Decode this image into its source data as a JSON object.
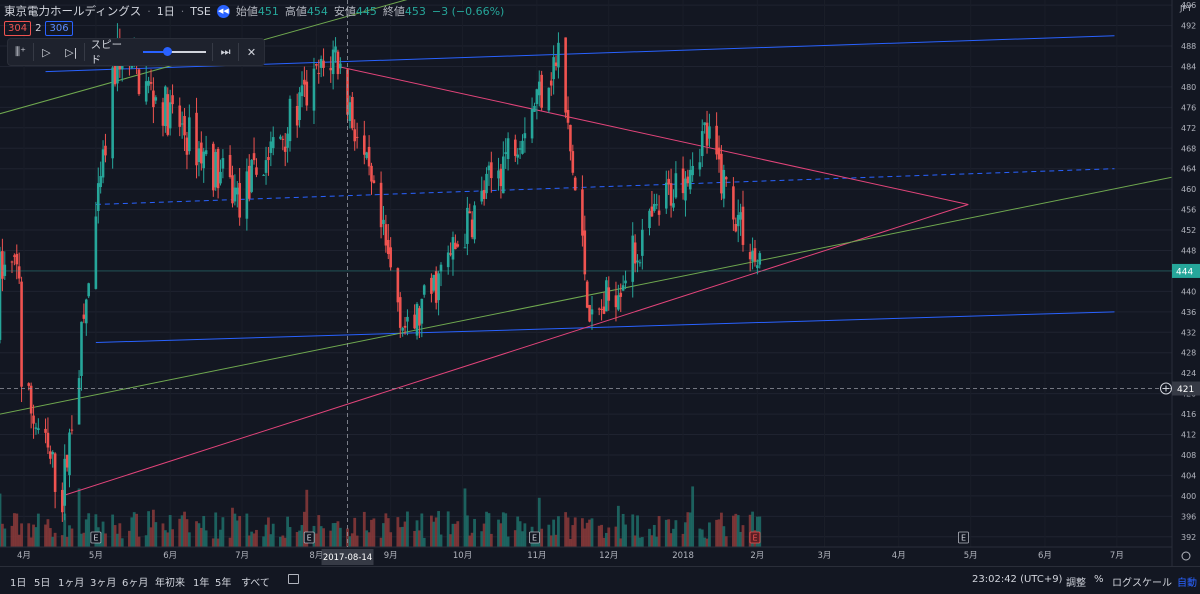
{
  "header": {
    "symbol": "東京電力ホールディングス",
    "interval": "1日",
    "exchange": "TSE",
    "open_label": "始値",
    "open": "451",
    "high_label": "高値",
    "high": "454",
    "low_label": "安値",
    "low": "445",
    "close_label": "終値",
    "close": "453",
    "change": "−3 (−0.66%)"
  },
  "trade": {
    "sell": "304",
    "spread": "2",
    "buy": "306"
  },
  "replay_toolbar": {
    "speed_label": "スピード",
    "speed_fraction": 0.35
  },
  "currency": "JPY",
  "bottom_bar": {
    "ranges": [
      "1日",
      "5日",
      "1ヶ月",
      "3ヶ月",
      "6ヶ月",
      "年初来",
      "1年",
      "5年",
      "すべて"
    ],
    "time": "23:02:42 (UTC+9)",
    "adjust": "調整",
    "percent": "%",
    "log": "ログスケール",
    "auto": "自動"
  },
  "colors": {
    "up": "#26a69a",
    "down": "#ef5350",
    "blue_line": "#2962ff",
    "pink_line": "#e2447a",
    "green_line": "#6fa84f",
    "background": "#131722"
  },
  "chart_data": {
    "type": "candlestick",
    "y_ticks": [
      392,
      396,
      400,
      404,
      408,
      412,
      416,
      420,
      424,
      428,
      432,
      436,
      440,
      444,
      448,
      452,
      456,
      460,
      464,
      468,
      472,
      476,
      480,
      484,
      488,
      492,
      496
    ],
    "ylim": [
      390,
      497
    ],
    "x_ticks": [
      "4月",
      "5月",
      "6月",
      "7月",
      "8月",
      "9月",
      "10月",
      "11月",
      "12月",
      "2018",
      "2月",
      "3月",
      "4月",
      "5月",
      "6月",
      "7月"
    ],
    "crosshair_date": "2017-08-14",
    "crosshair_price": "421",
    "last_price": "444",
    "earnings_marker": "E",
    "key_points": [
      {
        "date": "2017-03-31",
        "close": 422
      },
      {
        "date": "2017-04-17",
        "low": 400
      },
      {
        "date": "2017-05-10",
        "high": 487
      },
      {
        "date": "2017-06-30",
        "close": 458
      },
      {
        "date": "2017-08-09",
        "high": 487
      },
      {
        "date": "2017-09-08",
        "low": 431
      },
      {
        "date": "2017-11-10",
        "high": 486
      },
      {
        "date": "2017-11-24",
        "low": 433
      },
      {
        "date": "2018-01-10",
        "high": 471
      },
      {
        "date": "2018-02-02",
        "close": 444
      }
    ],
    "trendlines": [
      {
        "color": "blue",
        "from": [
          "2017-04-10",
          483
        ],
        "to": [
          "2018-06-30",
          490
        ]
      },
      {
        "color": "blue",
        "from": [
          "2017-05-01",
          430
        ],
        "to": [
          "2018-06-30",
          436
        ]
      },
      {
        "color": "blue",
        "style": "dashed",
        "from": [
          "2017-05-01",
          457
        ],
        "to": [
          "2018-06-30",
          464
        ]
      },
      {
        "color": "pink",
        "from": [
          "2017-08-10",
          484
        ],
        "to": [
          "2018-04-30",
          457
        ]
      },
      {
        "color": "pink",
        "from": [
          "2017-04-17",
          400
        ],
        "to": [
          "2018-04-30",
          457
        ]
      },
      {
        "color": "green",
        "from": [
          "2017-03-01",
          472
        ],
        "to": [
          "2017-09-30",
          500
        ]
      },
      {
        "color": "green",
        "from": [
          "2017-03-01",
          414
        ],
        "to": [
          "2018-07-31",
          463
        ]
      }
    ]
  }
}
